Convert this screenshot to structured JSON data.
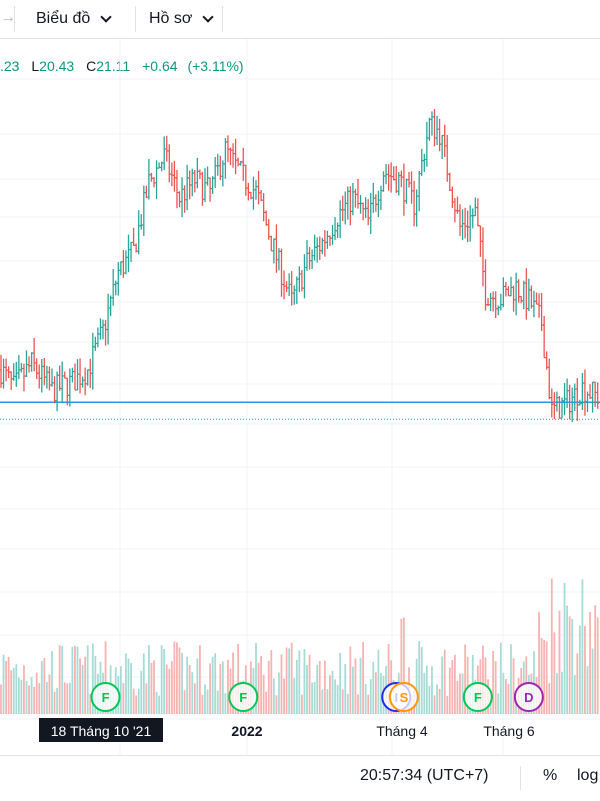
{
  "toolbar": {
    "charts_label": "Biểu đồ",
    "profile_label": "Hồ sơ",
    "back_icon": "arrow-right-icon"
  },
  "ohlc": {
    "high_partial": ".23",
    "low_key": "L",
    "low": "20.43",
    "close_key": "C",
    "close": "21.11",
    "change": "+0.64",
    "change_pct": "(+3.11%)"
  },
  "bottom": {
    "time": "20:57:34 (UTC+7)",
    "percent_label": "%",
    "log_label": "log"
  },
  "colors": {
    "up": "#26a69a",
    "down": "#ef5350",
    "volume_up": "#a6dcd6",
    "volume_down": "#f7b3b1",
    "price_line": "#2196f3",
    "dividend_marker": "#9c27b0",
    "split_marker": "#1e2ef0",
    "earnings_marker": "#00c853",
    "crosshair_label_bg": "#131722"
  },
  "chart_data": {
    "type": "ohlc",
    "x_labels": [
      "18 Tháng 10 '21",
      "2022",
      "Tháng 4",
      "Tháng 6"
    ],
    "highlighted_x_label": "18 Tháng 10 '21",
    "price_line": 21.11,
    "last_close": 21.11,
    "price_range": [
      16.5,
      31.5
    ],
    "grid": true,
    "series": [
      {
        "name": "price",
        "keyframes": [
          [
            0,
            22.2
          ],
          [
            5,
            21.6
          ],
          [
            12,
            22.4
          ],
          [
            20,
            21.5
          ],
          [
            28,
            21.8
          ],
          [
            34,
            22.2
          ],
          [
            40,
            23.5
          ],
          [
            46,
            25.5
          ],
          [
            52,
            26.2
          ],
          [
            58,
            28.5
          ],
          [
            64,
            29.4
          ],
          [
            70,
            28.0
          ],
          [
            76,
            28.6
          ],
          [
            82,
            28.2
          ],
          [
            88,
            29.6
          ],
          [
            94,
            28.8
          ],
          [
            100,
            28.2
          ],
          [
            108,
            26.0
          ],
          [
            114,
            24.5
          ],
          [
            120,
            25.8
          ],
          [
            126,
            26.5
          ],
          [
            132,
            27.4
          ],
          [
            138,
            28.0
          ],
          [
            144,
            27.2
          ],
          [
            150,
            28.9
          ],
          [
            156,
            28.6
          ],
          [
            162,
            27.8
          ],
          [
            168,
            30.5
          ],
          [
            172,
            30.2
          ],
          [
            180,
            27.0
          ],
          [
            186,
            27.5
          ],
          [
            190,
            24.8
          ],
          [
            196,
            24.6
          ],
          [
            202,
            25.0
          ],
          [
            208,
            24.4
          ],
          [
            212,
            23.8
          ],
          [
            216,
            20.8
          ],
          [
            222,
            21.1
          ],
          [
            228,
            21.6
          ],
          [
            234,
            21.3
          ]
        ]
      }
    ],
    "volume_range": [
      0,
      1
    ],
    "event_markers": [
      {
        "label": "F",
        "type": "earnings",
        "at": 41
      },
      {
        "label": "F",
        "type": "earnings",
        "at": 95
      },
      {
        "label": "I",
        "type": "split",
        "at": 155
      },
      {
        "label": "S",
        "type": "split",
        "at": 158
      },
      {
        "label": "F",
        "type": "earnings",
        "at": 187
      },
      {
        "label": "D",
        "type": "dividend",
        "at": 207
      }
    ]
  }
}
